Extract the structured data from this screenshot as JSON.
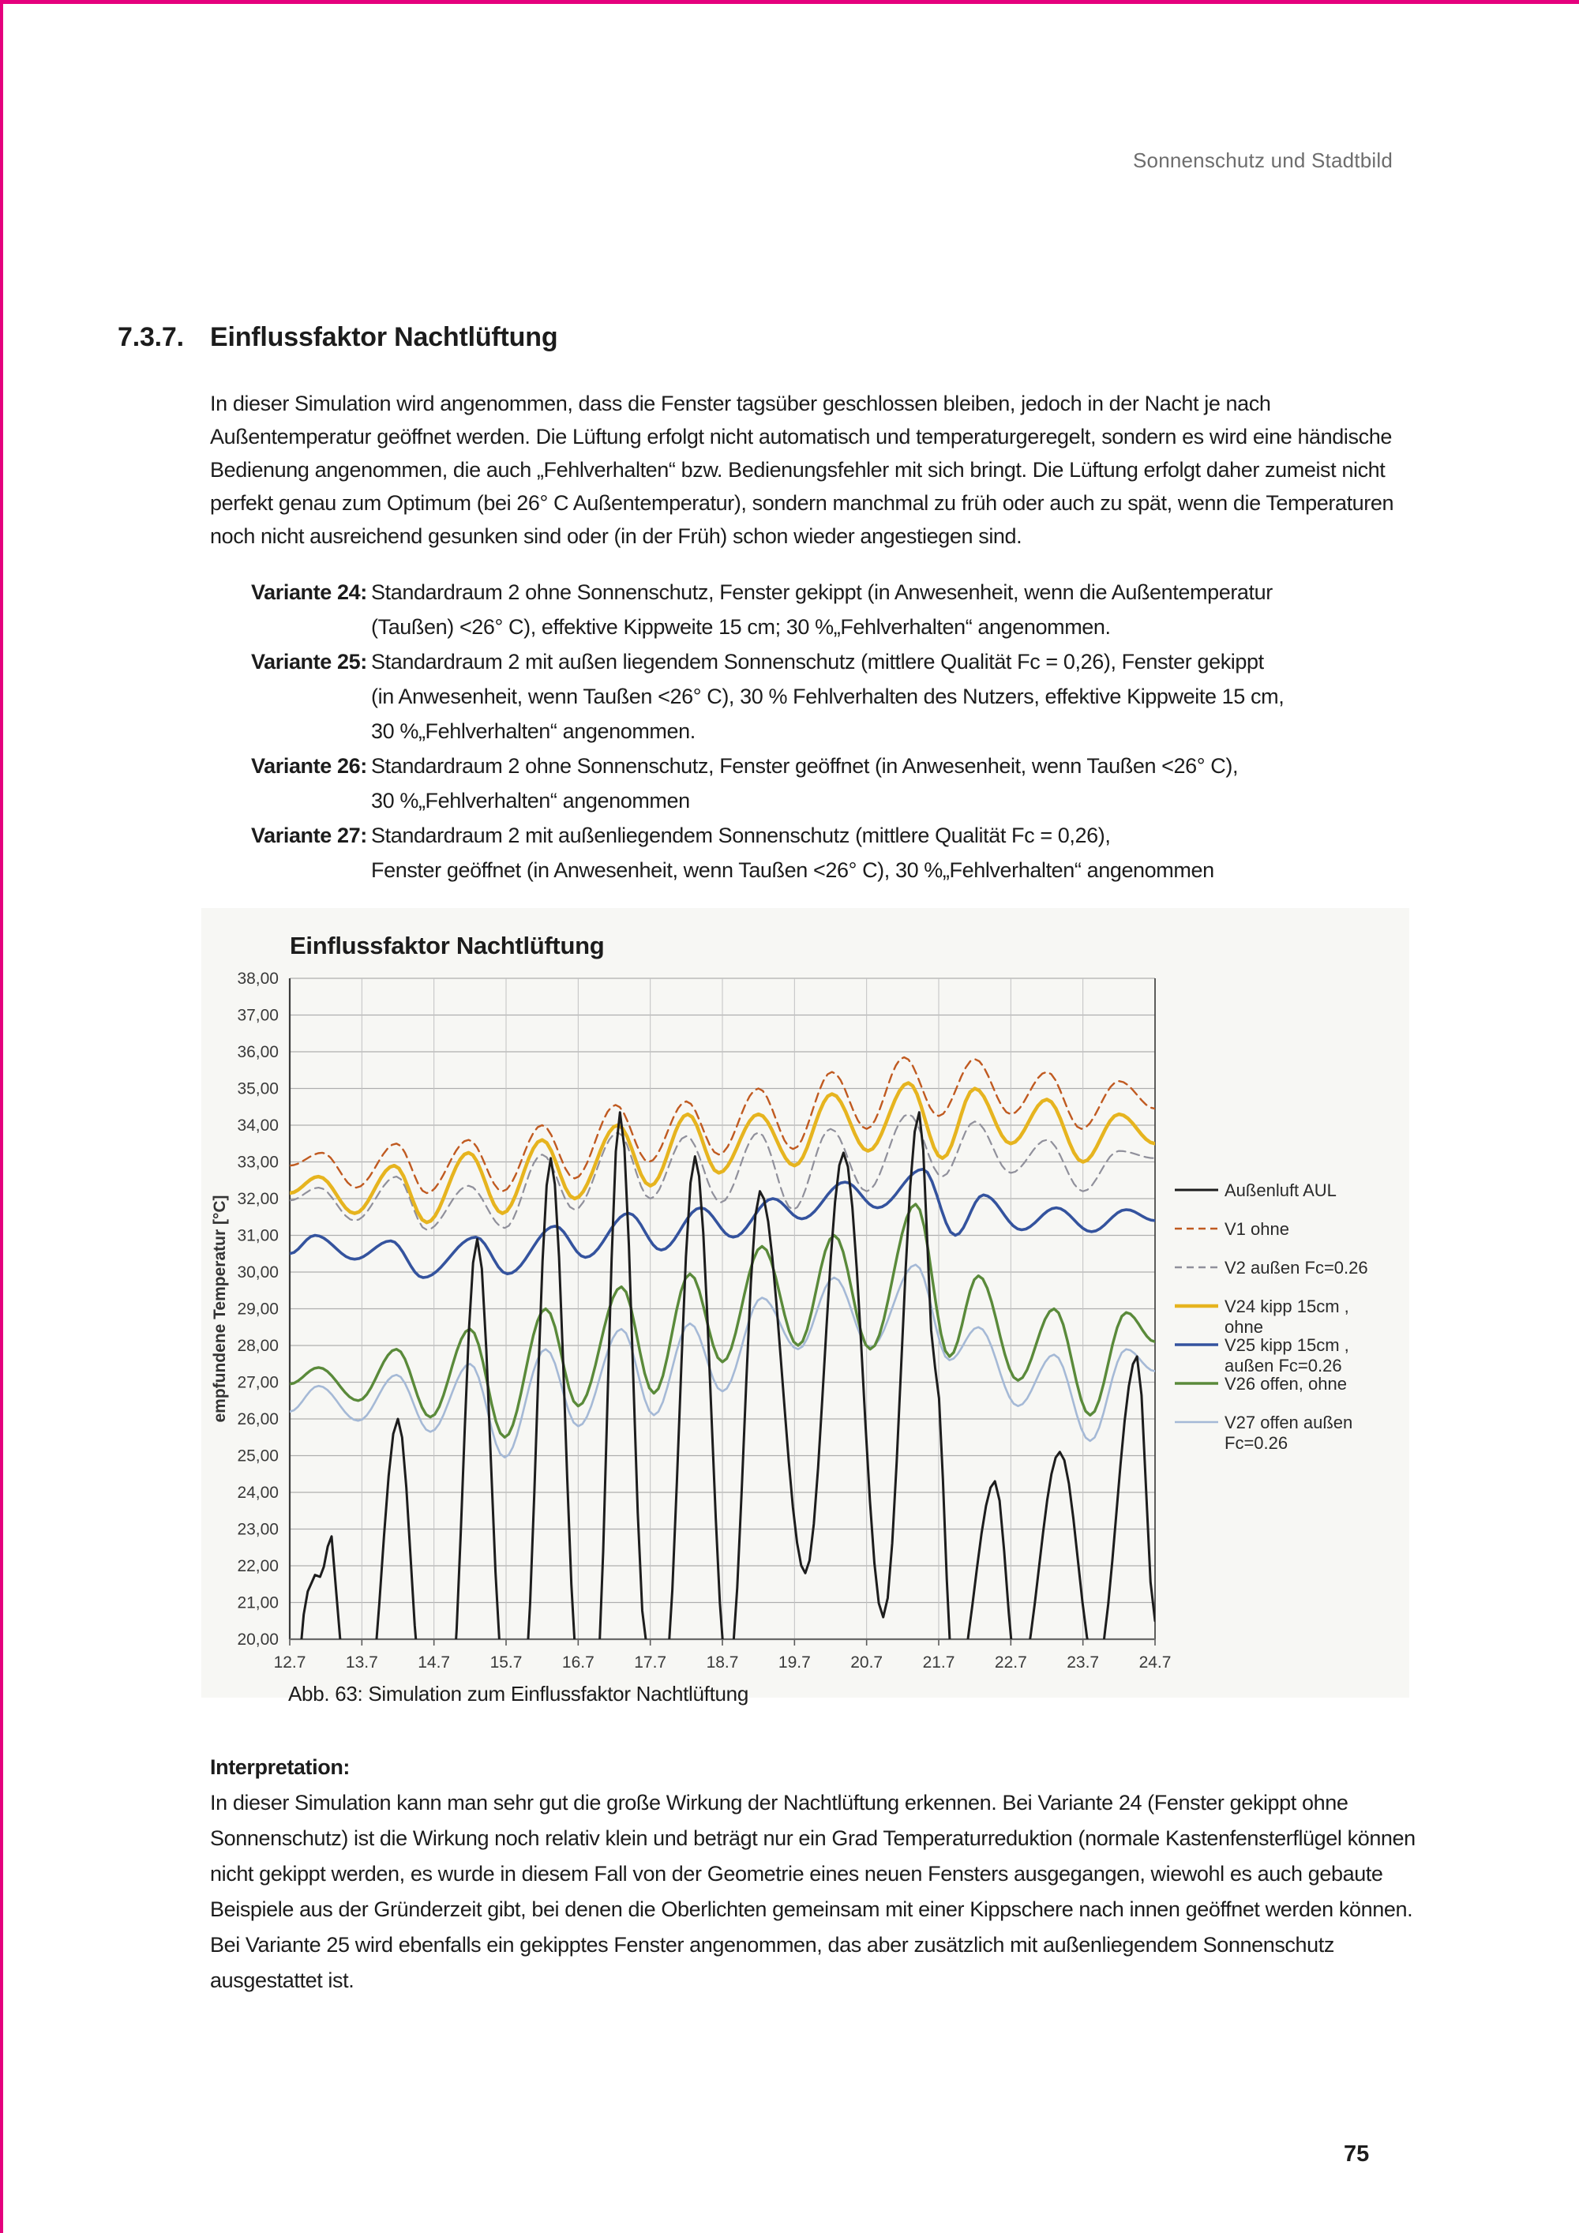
{
  "page": {
    "header_right": "Sonnenschutz und Stadtbild",
    "page_number": "75",
    "accent_color": "#e5007d"
  },
  "section": {
    "number": "7.3.7.",
    "title": "Einflussfaktor Nachtlüftung",
    "intro": "In dieser Simulation wird angenommen, dass die Fenster tagsüber geschlossen bleiben, jedoch in der Nacht je nach Außentemperatur geöffnet werden. Die Lüftung erfolgt nicht automatisch und temperaturgeregelt, sondern es wird eine händische Bedienung angenommen, die auch „Fehlverhalten“ bzw. Bedienungsfehler mit sich bringt. Die Lüftung erfolgt daher zumeist nicht perfekt genau zum Optimum (bei 26° C Außentemperatur), sondern manchmal zu früh oder auch zu spät, wenn die Temperaturen noch nicht ausreichend gesunken sind oder (in der Früh) schon wieder angestiegen sind."
  },
  "variants": [
    {
      "label": "Variante 24:",
      "text": "Standardraum 2 ohne Sonnenschutz, Fenster gekippt (in Anwesenheit, wenn die Außentemperatur\n(Taußen) <26° C), effektive Kippweite 15 cm; 30 %„Fehlverhalten“ angenommen."
    },
    {
      "label": "Variante 25:",
      "text": "Standardraum 2 mit außen liegendem Sonnenschutz (mittlere Qualität Fc = 0,26), Fenster gekippt\n(in Anwesenheit, wenn Taußen <26° C), 30 % Fehlverhalten des Nutzers, effektive Kippweite 15 cm,\n30 %„Fehlverhalten“ angenommen."
    },
    {
      "label": "Variante 26:",
      "text": "Standardraum 2 ohne Sonnenschutz, Fenster geöffnet (in Anwesenheit, wenn Taußen <26° C),\n30 %„Fehlverhalten“ angenommen"
    },
    {
      "label": "Variante 27:",
      "text": "Standardraum 2 mit außenliegendem Sonnenschutz (mittlere Qualität Fc = 0,26),\nFenster geöffnet (in Anwesenheit, wenn Taußen <26° C), 30 %„Fehlverhalten“ angenommen"
    }
  ],
  "figure": {
    "caption": "Abb. 63: Simulation zum Einflussfaktor Nachtlüftung"
  },
  "interpretation": {
    "heading": "Interpretation:",
    "para1": "In dieser Simulation kann man sehr gut die große Wirkung der Nachtlüftung erkennen. Bei Variante 24 (Fenster gekippt ohne Sonnenschutz) ist die Wirkung noch relativ klein und beträgt nur ein Grad Temperaturreduktion (normale Kastenfensterflügel können nicht gekippt werden, es wurde in diesem Fall von der Geometrie eines neuen Fensters ausgegangen, wiewohl es auch gebaute Beispiele aus der Gründerzeit gibt, bei denen die Oberlichten gemeinsam mit einer Kippschere nach innen geöffnet werden können.",
    "para2": "Bei Variante 25 wird ebenfalls ein gekipptes Fenster angenommen, das aber zusätzlich mit außenliegendem Sonnenschutz ausgestattet ist."
  },
  "chart_data": {
    "type": "line",
    "title": "Einflussfaktor Nachtlüftung",
    "xlabel": "",
    "ylabel": "empfundene Temperatur [°C]",
    "ylim": [
      20,
      38
    ],
    "y_ticks": [
      "38,00",
      "37,00",
      "36,00",
      "35,00",
      "34,00",
      "33,00",
      "32,00",
      "31,00",
      "30,00",
      "29,00",
      "28,00",
      "27,00",
      "26,00",
      "25,00",
      "24,00",
      "23,00",
      "22,00",
      "21,00",
      "20,00"
    ],
    "x_range": [
      12.7,
      24.7
    ],
    "x_ticks": [
      "12.7",
      "13.7",
      "14.7",
      "15.7",
      "16.7",
      "17.7",
      "18.7",
      "19.7",
      "20.7",
      "21.7",
      "22.7",
      "23.7",
      "24.7"
    ],
    "grid": {
      "horizontal": true,
      "vertical": true
    },
    "legend_position": "right",
    "series": [
      {
        "name": "Außenluft AUL",
        "legend_lines": [
          "Außenluft AUL"
        ],
        "color": "#1d1d1d",
        "dash": "",
        "width": 3,
        "points": [
          [
            12.7,
            17.5
          ],
          [
            12.78,
            18.8
          ],
          [
            12.95,
            21.3
          ],
          [
            13.05,
            21.75
          ],
          [
            13.12,
            21.7
          ],
          [
            13.28,
            22.8
          ],
          [
            13.42,
            19.5
          ],
          [
            13.75,
            17.8
          ],
          [
            14.2,
            26.0
          ],
          [
            14.55,
            18.5
          ],
          [
            14.9,
            17.8
          ],
          [
            15.3,
            30.9
          ],
          [
            15.68,
            18.8
          ],
          [
            15.92,
            18.2
          ],
          [
            16.32,
            33.1
          ],
          [
            16.72,
            18.8
          ],
          [
            16.93,
            18.4
          ],
          [
            17.28,
            34.35
          ],
          [
            17.65,
            19.8
          ],
          [
            17.88,
            18.6
          ],
          [
            18.32,
            33.15
          ],
          [
            18.78,
            18.9
          ],
          [
            19.22,
            32.2
          ],
          [
            19.85,
            21.8
          ],
          [
            20.38,
            33.25
          ],
          [
            20.93,
            20.6
          ],
          [
            21.43,
            34.35
          ],
          [
            21.65,
            27.4
          ],
          [
            21.92,
            18.6
          ],
          [
            22.48,
            24.3
          ],
          [
            22.8,
            18.8
          ],
          [
            23.38,
            25.1
          ],
          [
            23.88,
            19.2
          ],
          [
            24.45,
            27.7
          ],
          [
            24.7,
            20.5
          ]
        ]
      },
      {
        "name": "V1 ohne",
        "legend_lines": [
          "V1 ohne"
        ],
        "color": "#c05a20",
        "dash": "11 7",
        "width": 2.4,
        "points": [
          [
            12.7,
            32.9
          ],
          [
            13.15,
            33.25
          ],
          [
            13.62,
            32.3
          ],
          [
            14.18,
            33.5
          ],
          [
            14.6,
            32.15
          ],
          [
            15.18,
            33.6
          ],
          [
            15.65,
            32.2
          ],
          [
            16.2,
            34.0
          ],
          [
            16.65,
            32.55
          ],
          [
            17.22,
            34.55
          ],
          [
            17.68,
            33.0
          ],
          [
            18.2,
            34.65
          ],
          [
            18.65,
            33.2
          ],
          [
            19.2,
            35.0
          ],
          [
            19.68,
            33.35
          ],
          [
            20.22,
            35.45
          ],
          [
            20.7,
            33.9
          ],
          [
            21.22,
            35.85
          ],
          [
            21.7,
            34.25
          ],
          [
            22.2,
            35.8
          ],
          [
            22.7,
            34.3
          ],
          [
            23.2,
            35.45
          ],
          [
            23.68,
            33.9
          ],
          [
            24.2,
            35.2
          ],
          [
            24.7,
            34.45
          ]
        ]
      },
      {
        "name": "V2 außen Fc=0.26",
        "legend_lines": [
          "V2 außen Fc=0.26"
        ],
        "color": "#90909b",
        "dash": "11 7",
        "width": 2.2,
        "points": [
          [
            12.7,
            31.95
          ],
          [
            13.1,
            32.3
          ],
          [
            13.6,
            31.4
          ],
          [
            14.18,
            32.6
          ],
          [
            14.6,
            31.15
          ],
          [
            15.18,
            32.35
          ],
          [
            15.68,
            31.2
          ],
          [
            16.2,
            33.2
          ],
          [
            16.65,
            31.7
          ],
          [
            17.25,
            33.8
          ],
          [
            17.7,
            32.0
          ],
          [
            18.2,
            33.7
          ],
          [
            18.68,
            31.9
          ],
          [
            19.2,
            33.8
          ],
          [
            19.68,
            31.7
          ],
          [
            20.2,
            33.9
          ],
          [
            20.7,
            32.2
          ],
          [
            21.28,
            34.3
          ],
          [
            21.75,
            32.6
          ],
          [
            22.2,
            34.1
          ],
          [
            22.7,
            32.7
          ],
          [
            23.2,
            33.6
          ],
          [
            23.7,
            32.2
          ],
          [
            24.2,
            33.3
          ],
          [
            24.7,
            33.1
          ]
        ]
      },
      {
        "name": "V24 kipp 15cm , ohne",
        "legend_lines": [
          "V24 kipp 15cm ,",
          "ohne"
        ],
        "color": "#e6b41f",
        "dash": "",
        "width": 4.5,
        "points": [
          [
            12.7,
            32.15
          ],
          [
            13.1,
            32.6
          ],
          [
            13.6,
            31.6
          ],
          [
            14.15,
            32.9
          ],
          [
            14.6,
            31.35
          ],
          [
            15.18,
            33.25
          ],
          [
            15.65,
            31.6
          ],
          [
            16.2,
            33.6
          ],
          [
            16.65,
            32.0
          ],
          [
            17.25,
            34.0
          ],
          [
            17.7,
            32.35
          ],
          [
            18.22,
            34.3
          ],
          [
            18.65,
            32.7
          ],
          [
            19.2,
            34.3
          ],
          [
            19.7,
            32.9
          ],
          [
            20.22,
            34.85
          ],
          [
            20.72,
            33.3
          ],
          [
            21.28,
            35.15
          ],
          [
            21.75,
            33.1
          ],
          [
            22.2,
            35.0
          ],
          [
            22.7,
            33.5
          ],
          [
            23.2,
            34.7
          ],
          [
            23.7,
            33.0
          ],
          [
            24.2,
            34.3
          ],
          [
            24.7,
            33.5
          ]
        ]
      },
      {
        "name": "V25 kipp 15cm , außen Fc=0.26",
        "legend_lines": [
          "V25 kipp 15cm ,",
          "außen Fc=0.26"
        ],
        "color": "#34539e",
        "dash": "",
        "width": 3.6,
        "points": [
          [
            12.7,
            30.5
          ],
          [
            13.05,
            31.0
          ],
          [
            13.6,
            30.35
          ],
          [
            14.1,
            30.85
          ],
          [
            14.55,
            29.85
          ],
          [
            15.28,
            30.95
          ],
          [
            15.72,
            29.95
          ],
          [
            16.38,
            31.25
          ],
          [
            16.8,
            30.4
          ],
          [
            17.4,
            31.6
          ],
          [
            17.85,
            30.6
          ],
          [
            18.4,
            31.75
          ],
          [
            18.85,
            30.95
          ],
          [
            19.4,
            32.0
          ],
          [
            19.8,
            31.45
          ],
          [
            20.4,
            32.45
          ],
          [
            20.85,
            31.75
          ],
          [
            21.48,
            32.8
          ],
          [
            21.93,
            31.0
          ],
          [
            22.32,
            32.1
          ],
          [
            22.85,
            31.15
          ],
          [
            23.33,
            31.75
          ],
          [
            23.82,
            31.1
          ],
          [
            24.3,
            31.7
          ],
          [
            24.7,
            31.4
          ]
        ]
      },
      {
        "name": "V26 offen, ohne",
        "legend_lines": [
          "V26 offen, ohne"
        ],
        "color": "#5a8a3a",
        "dash": "",
        "width": 3.4,
        "points": [
          [
            12.7,
            26.95
          ],
          [
            13.1,
            27.4
          ],
          [
            13.65,
            26.5
          ],
          [
            14.18,
            27.9
          ],
          [
            14.65,
            26.05
          ],
          [
            15.2,
            28.45
          ],
          [
            15.68,
            25.5
          ],
          [
            16.25,
            29.0
          ],
          [
            16.7,
            26.35
          ],
          [
            17.3,
            29.6
          ],
          [
            17.75,
            26.7
          ],
          [
            18.25,
            29.95
          ],
          [
            18.7,
            27.55
          ],
          [
            19.25,
            30.7
          ],
          [
            19.75,
            28.0
          ],
          [
            20.25,
            31.0
          ],
          [
            20.75,
            27.9
          ],
          [
            21.38,
            31.85
          ],
          [
            21.85,
            27.7
          ],
          [
            22.25,
            29.9
          ],
          [
            22.8,
            27.05
          ],
          [
            23.3,
            29.0
          ],
          [
            23.8,
            26.1
          ],
          [
            24.3,
            28.9
          ],
          [
            24.7,
            28.1
          ]
        ]
      },
      {
        "name": "V27 offen außen Fc=0.26",
        "legend_lines": [
          "V27 offen außen",
          "Fc=0.26"
        ],
        "color": "#a5b9d6",
        "dash": "",
        "width": 2.6,
        "points": [
          [
            12.7,
            26.2
          ],
          [
            13.1,
            26.9
          ],
          [
            13.65,
            25.95
          ],
          [
            14.18,
            27.2
          ],
          [
            14.65,
            25.65
          ],
          [
            15.2,
            27.5
          ],
          [
            15.68,
            24.95
          ],
          [
            16.25,
            27.9
          ],
          [
            16.7,
            25.8
          ],
          [
            17.3,
            28.45
          ],
          [
            17.75,
            26.1
          ],
          [
            18.25,
            28.6
          ],
          [
            18.7,
            26.75
          ],
          [
            19.25,
            29.3
          ],
          [
            19.75,
            27.9
          ],
          [
            20.25,
            29.85
          ],
          [
            20.75,
            27.95
          ],
          [
            21.38,
            30.2
          ],
          [
            21.85,
            27.6
          ],
          [
            22.25,
            28.5
          ],
          [
            22.8,
            26.35
          ],
          [
            23.3,
            27.75
          ],
          [
            23.8,
            25.4
          ],
          [
            24.3,
            27.9
          ],
          [
            24.7,
            27.3
          ]
        ]
      }
    ]
  }
}
